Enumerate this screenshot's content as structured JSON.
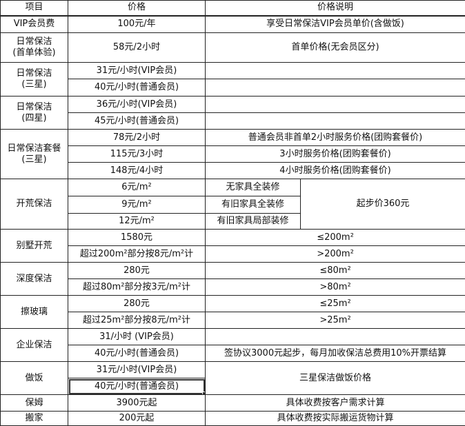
{
  "header": {
    "item": "项目",
    "price": "价格",
    "note": "价格说明"
  },
  "rows": {
    "vip": {
      "name": "VIP会员费",
      "p1": "100元/年",
      "n1": "享受日常保洁VIP会员单价(含做饭)"
    },
    "first": {
      "name_l1": "日常保洁",
      "name_l2": "(首单体验)",
      "p1": "58元/2小时",
      "n1": "首单价格(无会员区分)"
    },
    "three": {
      "name_l1": "日常保洁",
      "name_l2": "(三星)",
      "p1": "31元/小时(VIP会员)",
      "p2": "40元/小时(普通会员)"
    },
    "four": {
      "name_l1": "日常保洁",
      "name_l2": "(四星)",
      "p1": "36元/小时(VIP会员)",
      "p2": "45元/小时(普通会员)"
    },
    "pkg": {
      "name_l1": "日常保洁套餐",
      "name_l2": "(三星)",
      "p1": "78元/2小时",
      "n1": "普通会员非首单2小时服务价格(团购套餐价)",
      "p2": "115元/3小时",
      "n2": "3小时服务价格(团购套餐价)",
      "p3": "148元/4小时",
      "n3": "4小时服务价格(团购套餐价)"
    },
    "newhome": {
      "name": "开荒保洁",
      "p1": "6元/m²",
      "c1": "无家具全装修",
      "p2": "9元/m²",
      "c2": "有旧家具全装修",
      "p3": "12元/m²",
      "c3": "有旧家具局部装修",
      "n": "起步价360元"
    },
    "villa": {
      "name": "别墅开荒",
      "p1": "1580元",
      "n1": "≤200m²",
      "p2": "超过200m²部分按8元/m²计",
      "n2": ">200m²"
    },
    "deep": {
      "name": "深度保洁",
      "p1": "280元",
      "n1": "≤80m²",
      "p2": "超过80m²部分按3元/m²计",
      "n2": ">80m²"
    },
    "glass": {
      "name": "擦玻璃",
      "p1": "280元",
      "n1": "≤25m²",
      "p2": "超过25m²部分按8元/m²计",
      "n2": ">25m²"
    },
    "biz": {
      "name": "企业保洁",
      "p1": "31/小时 (VIP会员)",
      "p2": "40元/小时(普通会员)",
      "n2": "签协议3000元起步，每月加收保洁总费用10%开票结算"
    },
    "cook": {
      "name": "做饭",
      "p1": "31元/小时(VIP会员)",
      "p2": "40元/小时(普通会员)",
      "n": "三星保洁做饭价格"
    },
    "nanny": {
      "name": "保姆",
      "p1": "3900元起",
      "n1": "具体收费按客户需求计算"
    },
    "move": {
      "name": "搬家",
      "p1": "200元起",
      "n1": "具体收费按实际搬运货物计算"
    }
  }
}
